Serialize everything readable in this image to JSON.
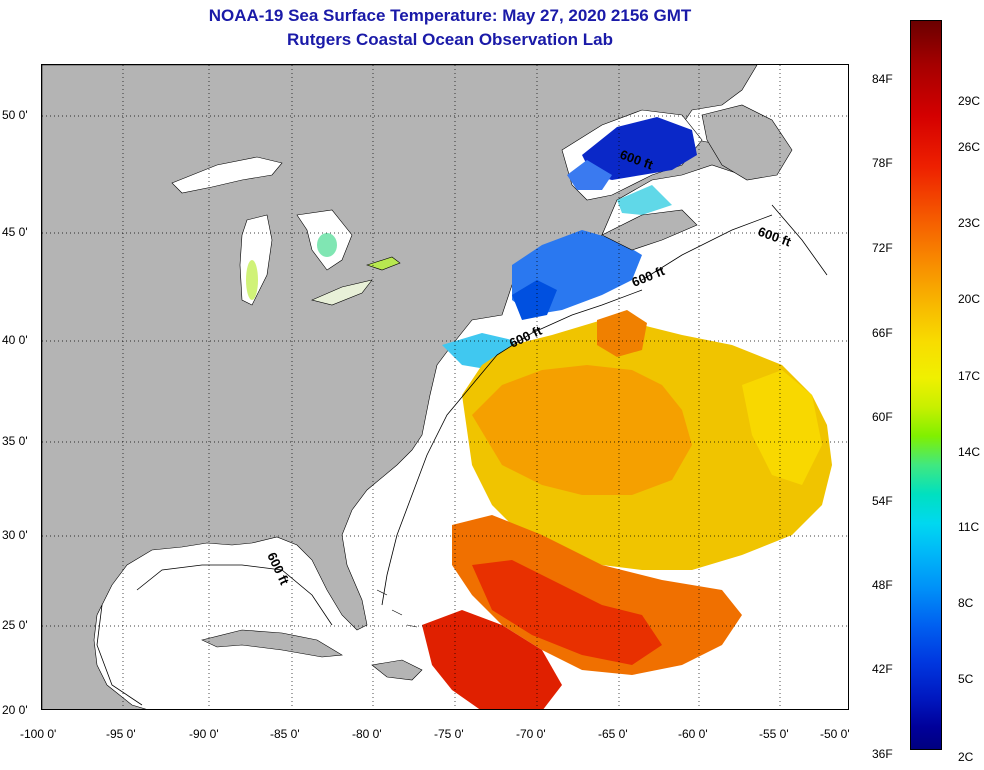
{
  "title": {
    "line1": "NOAA-19 Sea Surface Temperature:  May 27, 2020 2156 GMT",
    "line2": "Rutgers Coastal Ocean Observation Lab"
  },
  "map": {
    "lat_labels": [
      "50 0'",
      "45 0'",
      "40 0'",
      "35 0'",
      "30 0'",
      "25 0'",
      "20 0'"
    ],
    "lon_labels": [
      "-100 0'",
      "-95 0'",
      "-90 0'",
      "-85 0'",
      "-80 0'",
      "-75 0'",
      "-70 0'",
      "-65 0'",
      "-60 0'",
      "-55 0'",
      "-50 0'"
    ],
    "contour_label": "600 ft",
    "colors": {
      "land": "#b4b4b4",
      "ocean_nodata": "#ffffff",
      "grid": "#000000"
    }
  },
  "colorbar": {
    "fahrenheit_labels": [
      "84F",
      "78F",
      "72F",
      "66F",
      "60F",
      "54F",
      "48F",
      "42F",
      "36F"
    ],
    "celsius_labels": [
      "29C",
      "26C",
      "23C",
      "20C",
      "17C",
      "14C",
      "11C",
      "8C",
      "5C",
      "2C"
    ]
  }
}
